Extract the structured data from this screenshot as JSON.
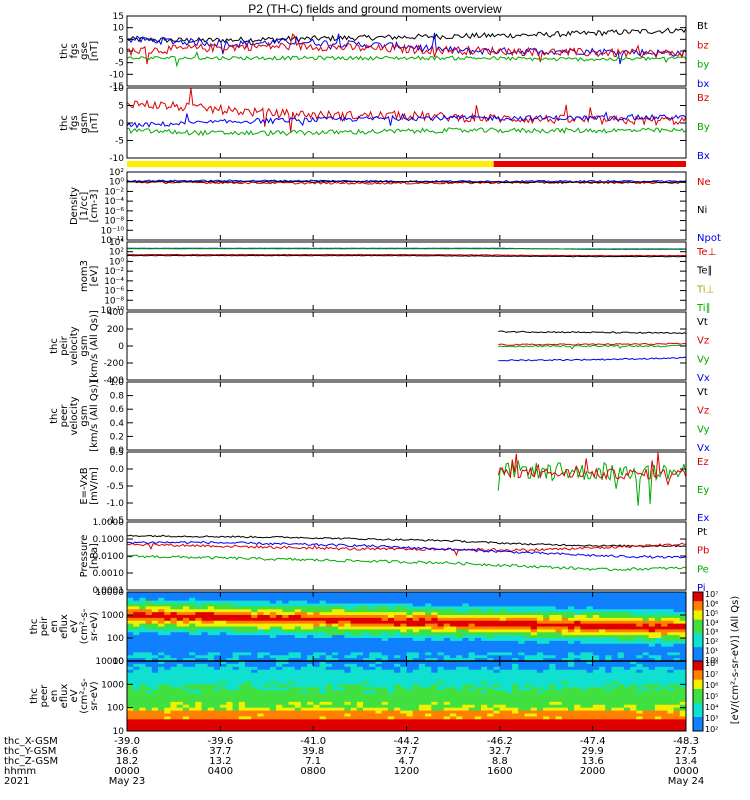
{
  "title": "P2 (TH-C) fields and ground moments overview",
  "panels": [
    {
      "id": "fgs_gse",
      "ylabel": [
        "thc",
        "fgs",
        "gse",
        "[nT]"
      ],
      "yticks": [
        "15",
        "10",
        "5",
        "0",
        "-5",
        "-10",
        "-15"
      ],
      "legend": [
        {
          "t": "Bt",
          "c": "#000000"
        },
        {
          "t": "bz",
          "c": "#dd0000"
        },
        {
          "t": "by",
          "c": "#00aa00"
        },
        {
          "t": "bx",
          "c": "#0000ee"
        }
      ]
    },
    {
      "id": "fgs_gsm",
      "ylabel": [
        "thc",
        "fgs",
        "gsm",
        "[nT]"
      ],
      "yticks": [
        "10",
        "5",
        "0",
        "-5",
        "-10"
      ],
      "legend": [
        {
          "t": "Bz",
          "c": "#dd0000"
        },
        {
          "t": "By",
          "c": "#00aa00"
        },
        {
          "t": "Bx",
          "c": "#0000ee"
        }
      ]
    },
    {
      "id": "density",
      "ylabel": [
        "Density",
        "[1/cc]",
        "[cm-3]"
      ],
      "yticks": [
        "10²",
        "10⁰",
        "10⁻²",
        "10⁻⁴",
        "10⁻⁶",
        "10⁻⁸",
        "10⁻¹⁰",
        "10⁻¹²"
      ],
      "legend": [
        {
          "t": "Ne",
          "c": "#dd0000"
        },
        {
          "t": "Ni",
          "c": "#000000"
        },
        {
          "t": "Npot",
          "c": "#0000ee"
        }
      ]
    },
    {
      "id": "temp",
      "ylabel": [
        "mom3",
        "[eV]"
      ],
      "yticks": [
        "10⁴",
        "10²",
        "10⁰",
        "10⁻²",
        "10⁻⁴",
        "10⁻⁶",
        "10⁻⁸",
        "10⁻¹⁰"
      ],
      "legend": [
        {
          "t": "Te⊥",
          "c": "#dd0000"
        },
        {
          "t": "Te∥",
          "c": "#000000"
        },
        {
          "t": "Ti⊥",
          "c": "#aaaa00"
        },
        {
          "t": "Ti∥",
          "c": "#00aa00"
        }
      ]
    },
    {
      "id": "peir_vel",
      "ylabel": [
        "thc",
        "peir",
        "velocity",
        "gsm",
        "[km/s (All Qs)]"
      ],
      "yticks": [
        "400",
        "200",
        "0",
        "-200",
        "-400"
      ],
      "legend": [
        {
          "t": "Vt",
          "c": "#000000"
        },
        {
          "t": "Vz",
          "c": "#dd0000"
        },
        {
          "t": "Vy",
          "c": "#00aa00"
        },
        {
          "t": "Vx",
          "c": "#0000ee"
        }
      ]
    },
    {
      "id": "peer_vel",
      "ylabel": [
        "thc",
        "peer",
        "velocity",
        "gsm",
        "[km/s (All Qs)]"
      ],
      "yticks": [
        "1.0",
        "0.8",
        "0.6",
        "0.4",
        "0.2",
        "0.0"
      ],
      "legend": [
        {
          "t": "Vt",
          "c": "#000000"
        },
        {
          "t": "Vz",
          "c": "#dd0000"
        },
        {
          "t": "Vy",
          "c": "#00aa00"
        },
        {
          "t": "Vx",
          "c": "#0000ee"
        }
      ]
    },
    {
      "id": "efield",
      "ylabel": [
        "E=-VxB",
        "[mV/m]"
      ],
      "yticks": [
        "0.5",
        "0.0",
        "-0.5",
        "-1.0",
        "-1.5"
      ],
      "legend": [
        {
          "t": "Ez",
          "c": "#dd0000"
        },
        {
          "t": "Ey",
          "c": "#00aa00"
        },
        {
          "t": "Ex",
          "c": "#0000ee"
        }
      ]
    },
    {
      "id": "pressure",
      "ylabel": [
        "Pressure",
        "[nPa]"
      ],
      "yticks": [
        "1.0000",
        "0.1000",
        "0.0100",
        "0.0010",
        "0.0001"
      ],
      "legend": [
        {
          "t": "Pt",
          "c": "#000000"
        },
        {
          "t": "Pb",
          "c": "#dd0000"
        },
        {
          "t": "Pe",
          "c": "#00aa00"
        },
        {
          "t": "Pi",
          "c": "#0000ee"
        }
      ]
    },
    {
      "id": "peir_spec",
      "ylabel": [
        "thc",
        "peir",
        "en",
        "eflux",
        "eV",
        "(cm²-s-",
        "sr-eV)"
      ],
      "yticks": [
        "10000",
        "1000",
        "100",
        "10"
      ],
      "legend": []
    },
    {
      "id": "peer_spec",
      "ylabel": [
        "thc",
        "peer",
        "en",
        "eflux",
        "eV",
        "(cm²-s-",
        "sr-eV)"
      ],
      "yticks": [
        "10000",
        "1000",
        "100",
        "10"
      ],
      "legend": []
    }
  ],
  "colorbar": {
    "label": "[eV/(cm²-s-sr-eV)] (All Qs)",
    "ticks_top": [
      "10⁷",
      "10⁶",
      "10⁵",
      "10⁴",
      "10³",
      "10²",
      "10¹",
      "10⁰"
    ],
    "ticks_bottom": [
      "10⁸",
      "10⁷",
      "10⁶",
      "10⁵",
      "10⁴",
      "10³",
      "10²"
    ]
  },
  "footer": {
    "rows": [
      {
        "label": "thc_X-GSM",
        "values": [
          "-39.0",
          "-39.6",
          "-41.0",
          "-44.2",
          "-46.2",
          "-47.4",
          "-48.3"
        ]
      },
      {
        "label": "thc_Y-GSM",
        "values": [
          "36.6",
          "37.7",
          "39.8",
          "37.7",
          "32.7",
          "29.9",
          "27.5"
        ]
      },
      {
        "label": "thc_Z-GSM",
        "values": [
          "18.2",
          "13.2",
          "7.1",
          "4.7",
          "8.8",
          "13.6",
          "13.4"
        ]
      },
      {
        "label": "hhmm",
        "values": [
          "0000",
          "0400",
          "0800",
          "1200",
          "1600",
          "2000",
          "0000"
        ]
      },
      {
        "label": "2021",
        "values": [
          "May 23",
          "",
          "",
          "",
          "",
          "",
          "May 24"
        ]
      }
    ]
  },
  "chart_data": {
    "type": "line",
    "title": "P2 (TH-C) fields and ground moments overview",
    "x_ticks": [
      "0000",
      "0400",
      "0800",
      "1200",
      "1600",
      "2000",
      "0000"
    ],
    "date_labels": [
      "May 23",
      "May 24"
    ],
    "series_summary": {
      "fgs_gse": {
        "Bt": [
          5,
          4,
          5,
          6,
          6,
          7,
          9
        ],
        "bz": [
          0,
          1,
          2,
          1,
          0,
          -1,
          -1
        ],
        "by": [
          -3,
          -3,
          -3,
          -3,
          -3,
          -3,
          -3
        ],
        "bx": [
          5,
          3,
          4,
          3,
          0,
          0,
          -1
        ]
      },
      "fgs_gsm": {
        "Bz": [
          7,
          4,
          3,
          3,
          2,
          1,
          1
        ],
        "By": [
          -3,
          -4,
          -4,
          -3,
          -3,
          -3,
          -3
        ],
        "Bx": [
          -1,
          0,
          1,
          2,
          2,
          2,
          2
        ]
      },
      "peir_vel": {
        "Vt": [
          null,
          null,
          null,
          null,
          250,
          200,
          150
        ],
        "Vz": [
          null,
          null,
          null,
          null,
          0,
          0,
          20
        ],
        "Vy": [
          null,
          null,
          null,
          null,
          -10,
          0,
          0
        ],
        "Vx": [
          null,
          null,
          null,
          null,
          -250,
          -200,
          -150
        ]
      }
    }
  }
}
